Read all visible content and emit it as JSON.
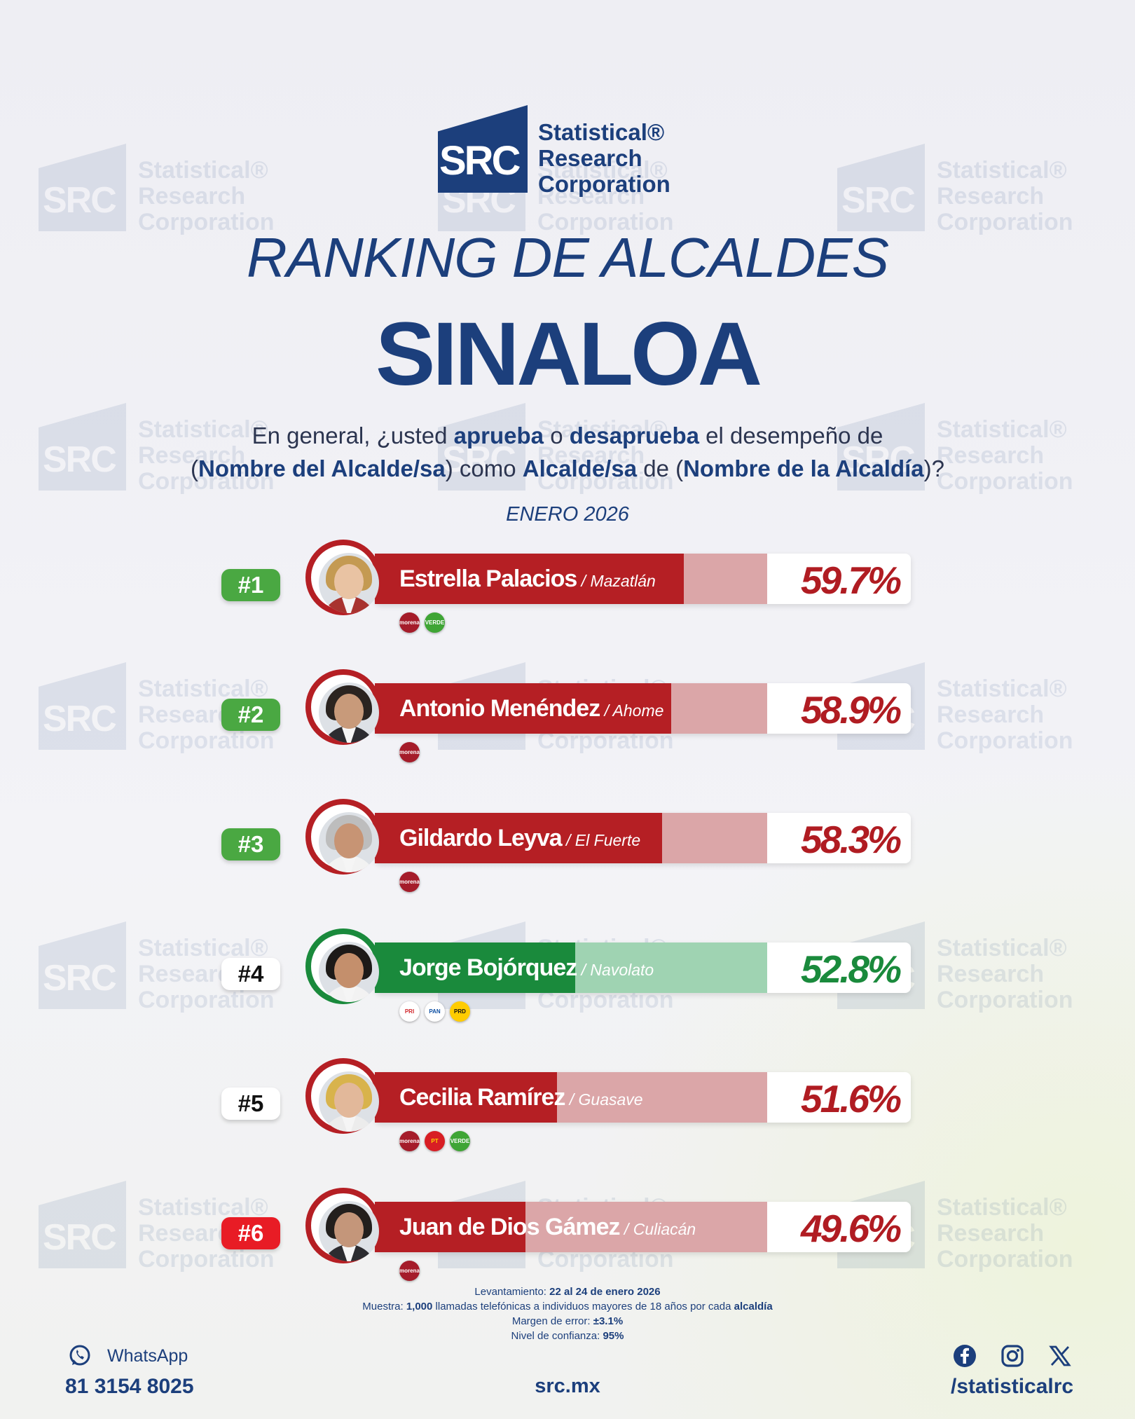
{
  "brand": {
    "logo_mark": "SRC",
    "logo_lines": [
      "Statistical®",
      "Research",
      "Corporation"
    ]
  },
  "title": "RANKING DE ALCALDES",
  "state": "SINALOA",
  "question": {
    "p1": "En general, ¿usted ",
    "b1": "aprueba",
    "p2": " o ",
    "b2": "desaprueba",
    "p3": " el desempeño de",
    "p4": "(",
    "b3": "Nombre del Alcalde/sa",
    "p5": ") como ",
    "b4": "Alcalde/sa",
    "p6": " de (",
    "b5": "Nombre de la Alcaldía",
    "p7": ")?"
  },
  "date": "ENERO 2026",
  "colors": {
    "red_dark": "#b51f24",
    "red_light": "#dba6a8",
    "red_text": "#b01c22",
    "green_dark": "#1a8a3c",
    "green_light": "#9fd3b2",
    "green_text": "#1a8a3c",
    "rank_green": "#4aa842",
    "rank_red": "#e81c25",
    "navy": "#1c3f7c"
  },
  "chart_data": {
    "type": "bar",
    "categories": [
      "Estrella Palacios",
      "Antonio Menéndez",
      "Gildardo Leyva",
      "Jorge Bojórquez",
      "Cecilia Ramírez",
      "Juan de Dios Gámez"
    ],
    "values": [
      59.7,
      58.9,
      58.3,
      52.8,
      51.6,
      49.6
    ],
    "value_suffix": "%",
    "xlim": [
      0,
      100
    ],
    "title": "",
    "xlabel": "",
    "ylabel": "",
    "grid": false
  },
  "rows": [
    {
      "rank": "#1",
      "rank_style": "green",
      "name": "Estrella Palacios",
      "municipality": " / Mazatlán",
      "pct": "59.7%",
      "value": 59.7,
      "theme": "red",
      "parties": [
        {
          "label": "morena",
          "icon": "morena-logo-icon"
        },
        {
          "label": "VERDE",
          "icon": "verde-logo-icon"
        }
      ],
      "avatar": {
        "hair": "#c49a52",
        "skin": "#e9c3a3",
        "body": "#a8332f"
      }
    },
    {
      "rank": "#2",
      "rank_style": "green",
      "name": "Antonio Menéndez",
      "municipality": " / Ahome",
      "pct": "58.9%",
      "value": 58.9,
      "theme": "red",
      "parties": [
        {
          "label": "morena",
          "icon": "morena-logo-icon"
        }
      ],
      "avatar": {
        "hair": "#2b2420",
        "skin": "#c89a7a",
        "body": "#2c2c30"
      }
    },
    {
      "rank": "#3",
      "rank_style": "green",
      "name": "Gildardo Leyva",
      "municipality": " / El Fuerte",
      "pct": "58.3%",
      "value": 58.3,
      "theme": "red",
      "parties": [
        {
          "label": "morena",
          "icon": "morena-logo-icon"
        }
      ],
      "avatar": {
        "hair": "#bdbdbd",
        "skin": "#c79474",
        "body": "#f2f2f2"
      }
    },
    {
      "rank": "#4",
      "rank_style": "white",
      "name": "Jorge Bojórquez",
      "municipality": " / Navolato",
      "pct": "52.8%",
      "value": 52.8,
      "theme": "green",
      "parties": [
        {
          "label": "PRI",
          "icon": "pri-logo-icon"
        },
        {
          "label": "PAN",
          "icon": "pan-logo-icon"
        },
        {
          "label": "PRD",
          "icon": "prd-logo-icon"
        }
      ],
      "avatar": {
        "hair": "#1d1a18",
        "skin": "#c48f6c",
        "body": "#f2f2f2"
      }
    },
    {
      "rank": "#5",
      "rank_style": "white",
      "name": "Cecilia Ramírez",
      "municipality": " / Guasave",
      "pct": "51.6%",
      "value": 51.6,
      "theme": "red",
      "parties": [
        {
          "label": "morena",
          "icon": "morena-logo-icon"
        },
        {
          "label": "PT",
          "icon": "pt-logo-icon"
        },
        {
          "label": "VERDE",
          "icon": "verde-logo-icon"
        }
      ],
      "avatar": {
        "hair": "#d8b34c",
        "skin": "#e2b89a",
        "body": "#ececec"
      }
    },
    {
      "rank": "#6",
      "rank_style": "red",
      "name": "Juan de Dios Gámez",
      "municipality": " / Culiacán",
      "pct": "49.6%",
      "value": 49.6,
      "theme": "red",
      "parties": [
        {
          "label": "morena",
          "icon": "morena-logo-icon"
        }
      ],
      "avatar": {
        "hair": "#231f1d",
        "skin": "#c4967a",
        "body": "#2c2c30"
      }
    }
  ],
  "footnote": {
    "l1_label": "Levantamiento: ",
    "l1_value": "22 al 24 de enero 2026",
    "l2_label": "Muestra: ",
    "l2_value": "1,000",
    "l2_text": " llamadas telefónicas a individuos mayores de 18 años por cada ",
    "l2_value2": "alcaldía",
    "l3_label": "Margen de error: ",
    "l3_value": "±3.1%",
    "l4_label": "Nivel de confianza: ",
    "l4_value": "95%"
  },
  "contact": {
    "whatsapp_label": "WhatsApp",
    "whatsapp_number": "81 3154 8025",
    "website": "src.mx",
    "social_handle": "/statisticalrc",
    "social_icons": [
      "facebook-icon",
      "instagram-icon",
      "x-icon"
    ]
  }
}
